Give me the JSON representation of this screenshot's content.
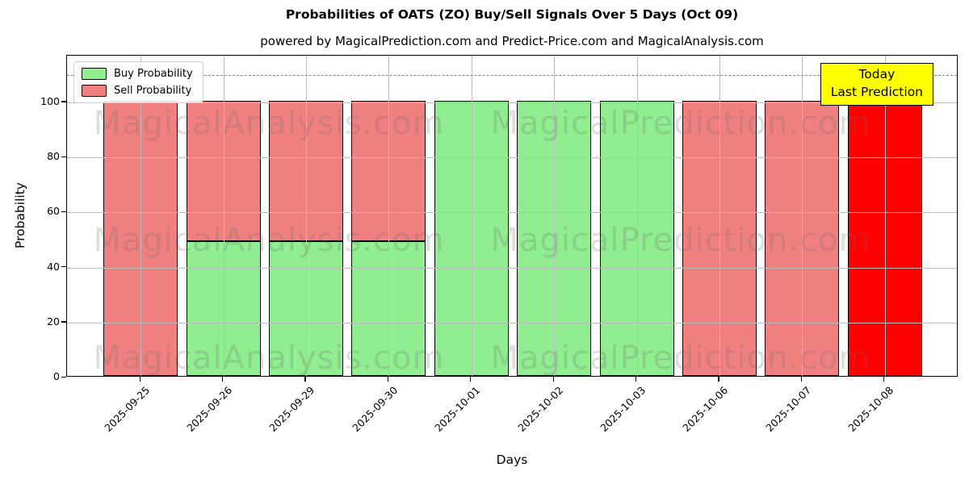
{
  "annotation": {
    "line1": "Today",
    "line2": "Last Prediction",
    "bg_color": "#FFFF00",
    "border_color": "#000000"
  },
  "watermarks": {
    "left_text": "MagicalAnalysis.com",
    "right_text": "MagicalPrediction.com"
  },
  "chart_data": {
    "type": "bar",
    "stacked": true,
    "title": "Probabilities of OATS (ZO) Buy/Sell Signals Over 5 Days (Oct 09)",
    "subtitle": "powered by MagicalPrediction.com and Predict-Price.com and MagicalAnalysis.com",
    "xlabel": "Days",
    "ylabel": "Probability",
    "categories": [
      "2025-09-25",
      "2025-09-26",
      "2025-09-29",
      "2025-09-30",
      "2025-10-01",
      "2025-10-02",
      "2025-10-03",
      "2025-10-06",
      "2025-10-07",
      "2025-10-08"
    ],
    "series": [
      {
        "name": "Buy Probability",
        "color": "#90EE90",
        "values": [
          0,
          49,
          49,
          49,
          100,
          100,
          100,
          0,
          0,
          0
        ]
      },
      {
        "name": "Sell Probability",
        "color": "#F08080",
        "values": [
          100,
          51,
          51,
          51,
          0,
          0,
          0,
          100,
          100,
          100
        ]
      }
    ],
    "today_bar": {
      "index": 9,
      "category": "2025-10-08",
      "color": "#FF0000",
      "value": 100
    },
    "threshold_line": {
      "y": 110,
      "style": "dashed",
      "color": "#7f7f7f"
    },
    "ylim": [
      0,
      117
    ],
    "y_ticks": [
      0,
      20,
      40,
      60,
      80,
      100
    ],
    "grid": true,
    "grid_over_bars": true,
    "legend_position": "upper left",
    "bar_edge_color": "#000000"
  }
}
